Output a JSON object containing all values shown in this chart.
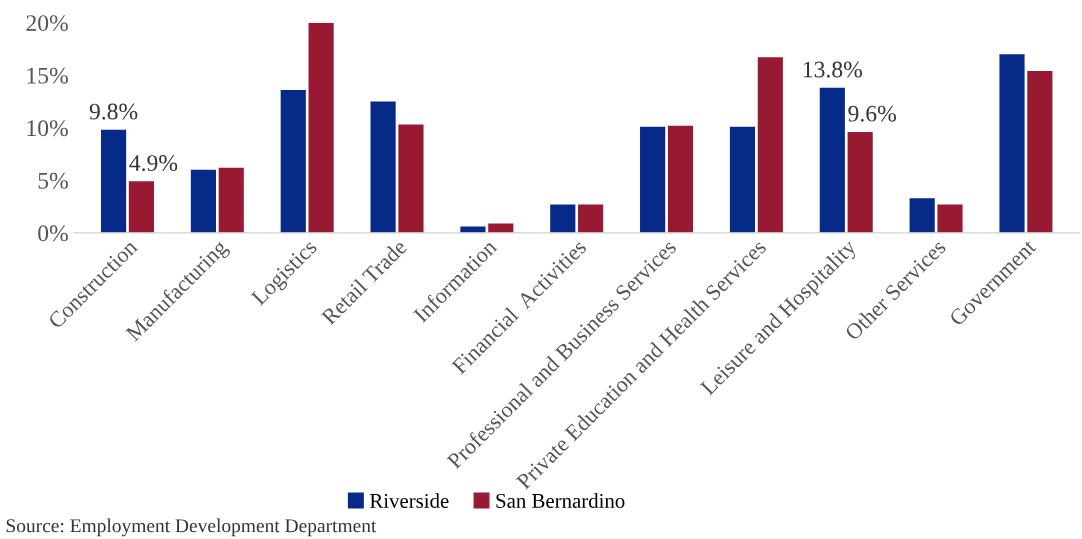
{
  "chart_data": {
    "type": "bar",
    "categories": [
      "Construction",
      "Manufacturing",
      "Logistics",
      "Retail Trade",
      "Information",
      "Financial  Activities",
      "Professional and Business Services",
      "Private Education and Health Services",
      "Leisure and Hospitality",
      "Other Services",
      "Government"
    ],
    "series": [
      {
        "name": "Riverside",
        "color": "#062a87",
        "values": [
          9.8,
          6.0,
          13.6,
          12.5,
          0.6,
          2.7,
          10.1,
          10.1,
          13.8,
          3.3,
          17.0
        ],
        "value_labels": [
          "9.8%",
          null,
          null,
          null,
          null,
          null,
          null,
          null,
          "13.8%",
          null,
          null
        ]
      },
      {
        "name": "San Bernardino",
        "color": "#971a32",
        "values": [
          4.9,
          6.2,
          20.0,
          10.3,
          0.9,
          2.7,
          10.2,
          16.7,
          9.6,
          2.7,
          15.4
        ],
        "value_labels": [
          "4.9%",
          null,
          null,
          null,
          null,
          null,
          null,
          null,
          "9.6%",
          null,
          null
        ]
      }
    ],
    "ylim": [
      0,
      20
    ],
    "yticks": [
      {
        "value": 0,
        "label": "0%"
      },
      {
        "value": 5,
        "label": "5%"
      },
      {
        "value": 10,
        "label": "10%"
      },
      {
        "value": 15,
        "label": "15%"
      },
      {
        "value": 20,
        "label": "20%"
      }
    ],
    "grid": false,
    "legend": "bottom",
    "annotations": [
      "Source: Employment Development Department"
    ]
  }
}
